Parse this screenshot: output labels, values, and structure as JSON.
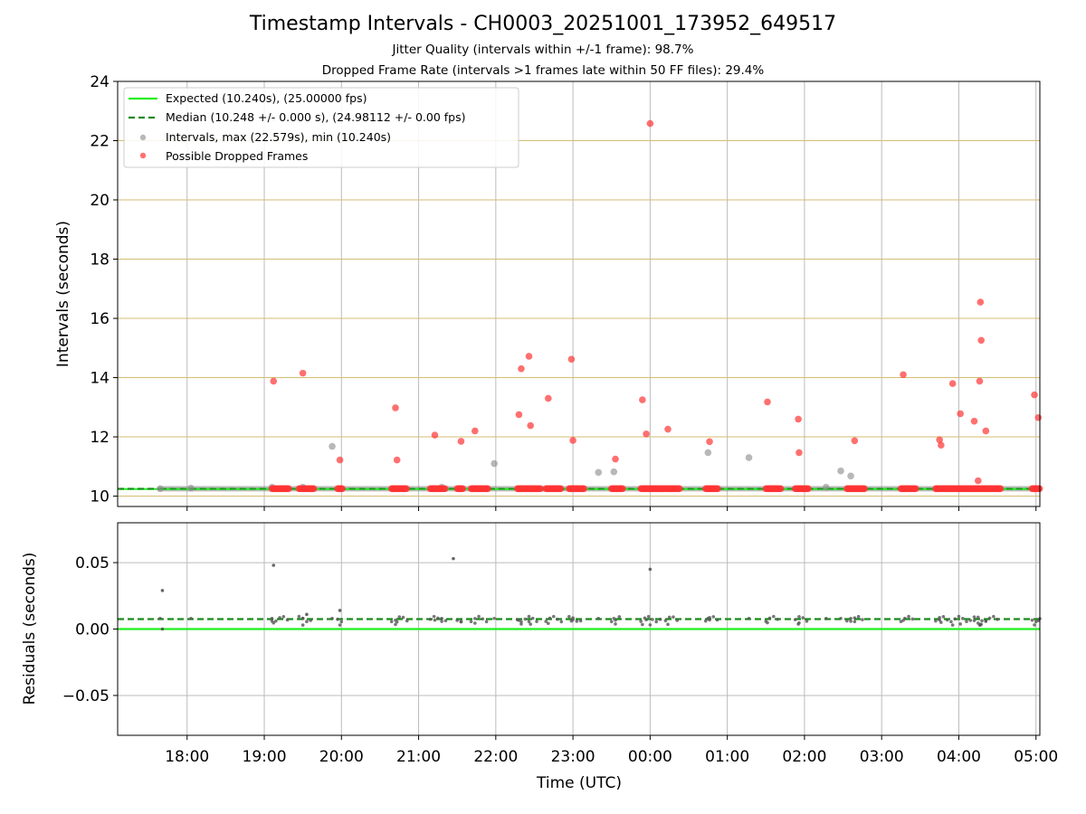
{
  "figure": {
    "title": "Timestamp Intervals - CH0003_20251001_173952_649517",
    "subtitle_1": "Jitter Quality (intervals within +/-1 frame): 98.7%",
    "subtitle_2": "Dropped Frame Rate (intervals >1 frames late within 50 FF files): 29.4%"
  },
  "colors": {
    "expected": "#22ee22",
    "median": "#1a8a1a",
    "intervals": "#888888",
    "dropped": "#ff3333",
    "hgrid": "#d4bd72",
    "vgrid": "#bbbbbb",
    "residual_dots": "#555555"
  },
  "chart_data": [
    {
      "type": "scatter",
      "title": "Timestamp Intervals",
      "xlabel": "",
      "ylabel": "Intervals (seconds)",
      "xlim_hours": [
        17.1,
        29.05
      ],
      "ylim": [
        9.65,
        24
      ],
      "yticks": [
        10,
        12,
        14,
        16,
        18,
        20,
        22,
        24
      ],
      "xtick_hours": [
        18,
        19,
        20,
        21,
        22,
        23,
        24,
        25,
        26,
        27,
        28,
        29
      ],
      "xtick_labels": [
        "18:00",
        "19:00",
        "20:00",
        "21:00",
        "22:00",
        "23:00",
        "00:00",
        "01:00",
        "02:00",
        "03:00",
        "04:00",
        "05:00"
      ],
      "lines": {
        "expected": {
          "label": "Expected (10.240s), (25.00000 fps)",
          "value": 10.24
        },
        "median": {
          "label": "Median (10.248 +/- 0.000 s), (24.98112 +/- 0.00 fps)",
          "value": 10.248
        }
      },
      "series": [
        {
          "name": "Intervals, max (22.579s), min (10.240s)",
          "points": [
            [
              17.65,
              10.25
            ],
            [
              18.05,
              10.27
            ],
            [
              19.1,
              10.3
            ],
            [
              19.5,
              10.3
            ],
            [
              19.88,
              11.68
            ],
            [
              21.3,
              10.3
            ],
            [
              21.98,
              11.1
            ],
            [
              23.33,
              10.8
            ],
            [
              23.53,
              10.82
            ],
            [
              24.75,
              11.47
            ],
            [
              25.28,
              11.3
            ],
            [
              26.28,
              10.3
            ],
            [
              26.47,
              10.85
            ],
            [
              26.6,
              10.68
            ]
          ]
        },
        {
          "name": "Possible Dropped Frames",
          "points": [
            [
              19.12,
              13.88
            ],
            [
              19.5,
              14.15
            ],
            [
              19.98,
              11.22
            ],
            [
              20.7,
              12.98
            ],
            [
              20.72,
              11.22
            ],
            [
              21.21,
              12.06
            ],
            [
              21.55,
              11.85
            ],
            [
              21.73,
              12.2
            ],
            [
              22.3,
              12.75
            ],
            [
              22.33,
              14.3
            ],
            [
              22.43,
              14.72
            ],
            [
              22.45,
              12.38
            ],
            [
              22.68,
              13.3
            ],
            [
              22.98,
              14.62
            ],
            [
              23.0,
              11.88
            ],
            [
              23.55,
              11.25
            ],
            [
              23.9,
              13.25
            ],
            [
              23.95,
              12.1
            ],
            [
              24.0,
              22.58
            ],
            [
              24.23,
              12.26
            ],
            [
              24.77,
              11.84
            ],
            [
              25.52,
              13.18
            ],
            [
              25.92,
              12.6
            ],
            [
              25.93,
              11.47
            ],
            [
              26.65,
              11.87
            ],
            [
              27.28,
              14.1
            ],
            [
              27.75,
              11.9
            ],
            [
              27.77,
              11.72
            ],
            [
              27.92,
              13.8
            ],
            [
              28.02,
              12.78
            ],
            [
              28.2,
              12.53
            ],
            [
              28.25,
              10.52
            ],
            [
              28.27,
              13.88
            ],
            [
              28.28,
              16.55
            ],
            [
              28.29,
              15.26
            ],
            [
              28.35,
              12.2
            ],
            [
              28.98,
              13.42
            ],
            [
              29.03,
              12.65
            ]
          ],
          "baseline_clusters_hours": [
            [
              19.1,
              19.32
            ],
            [
              19.45,
              19.65
            ],
            [
              19.95,
              20.02
            ],
            [
              20.65,
              20.85
            ],
            [
              21.15,
              21.35
            ],
            [
              21.5,
              21.58
            ],
            [
              21.68,
              21.9
            ],
            [
              22.28,
              22.58
            ],
            [
              22.65,
              22.85
            ],
            [
              22.95,
              23.15
            ],
            [
              23.5,
              23.65
            ],
            [
              23.88,
              24.18
            ],
            [
              24.2,
              24.38
            ],
            [
              24.72,
              24.88
            ],
            [
              25.5,
              25.7
            ],
            [
              25.88,
              26.05
            ],
            [
              26.55,
              26.78
            ],
            [
              27.25,
              27.45
            ],
            [
              27.7,
              28.55
            ],
            [
              28.95,
              29.05
            ]
          ]
        }
      ]
    },
    {
      "type": "scatter",
      "title": "Residuals",
      "xlabel": "Time (UTC)",
      "ylabel": "Residuals (seconds)",
      "ylim": [
        -0.08,
        0.08
      ],
      "yticks": [
        0.05,
        0.0,
        -0.05
      ],
      "ytick_labels": [
        "0.05",
        "0.00",
        "−0.05"
      ],
      "lines": {
        "expected": 0.0,
        "median": 0.0075
      },
      "outliers": [
        [
          17.68,
          0.029
        ],
        [
          19.12,
          0.048
        ],
        [
          21.45,
          0.053
        ],
        [
          24.0,
          0.045
        ],
        [
          19.98,
          0.014
        ],
        [
          19.55,
          0.011
        ],
        [
          17.68,
          0.0
        ]
      ]
    }
  ]
}
